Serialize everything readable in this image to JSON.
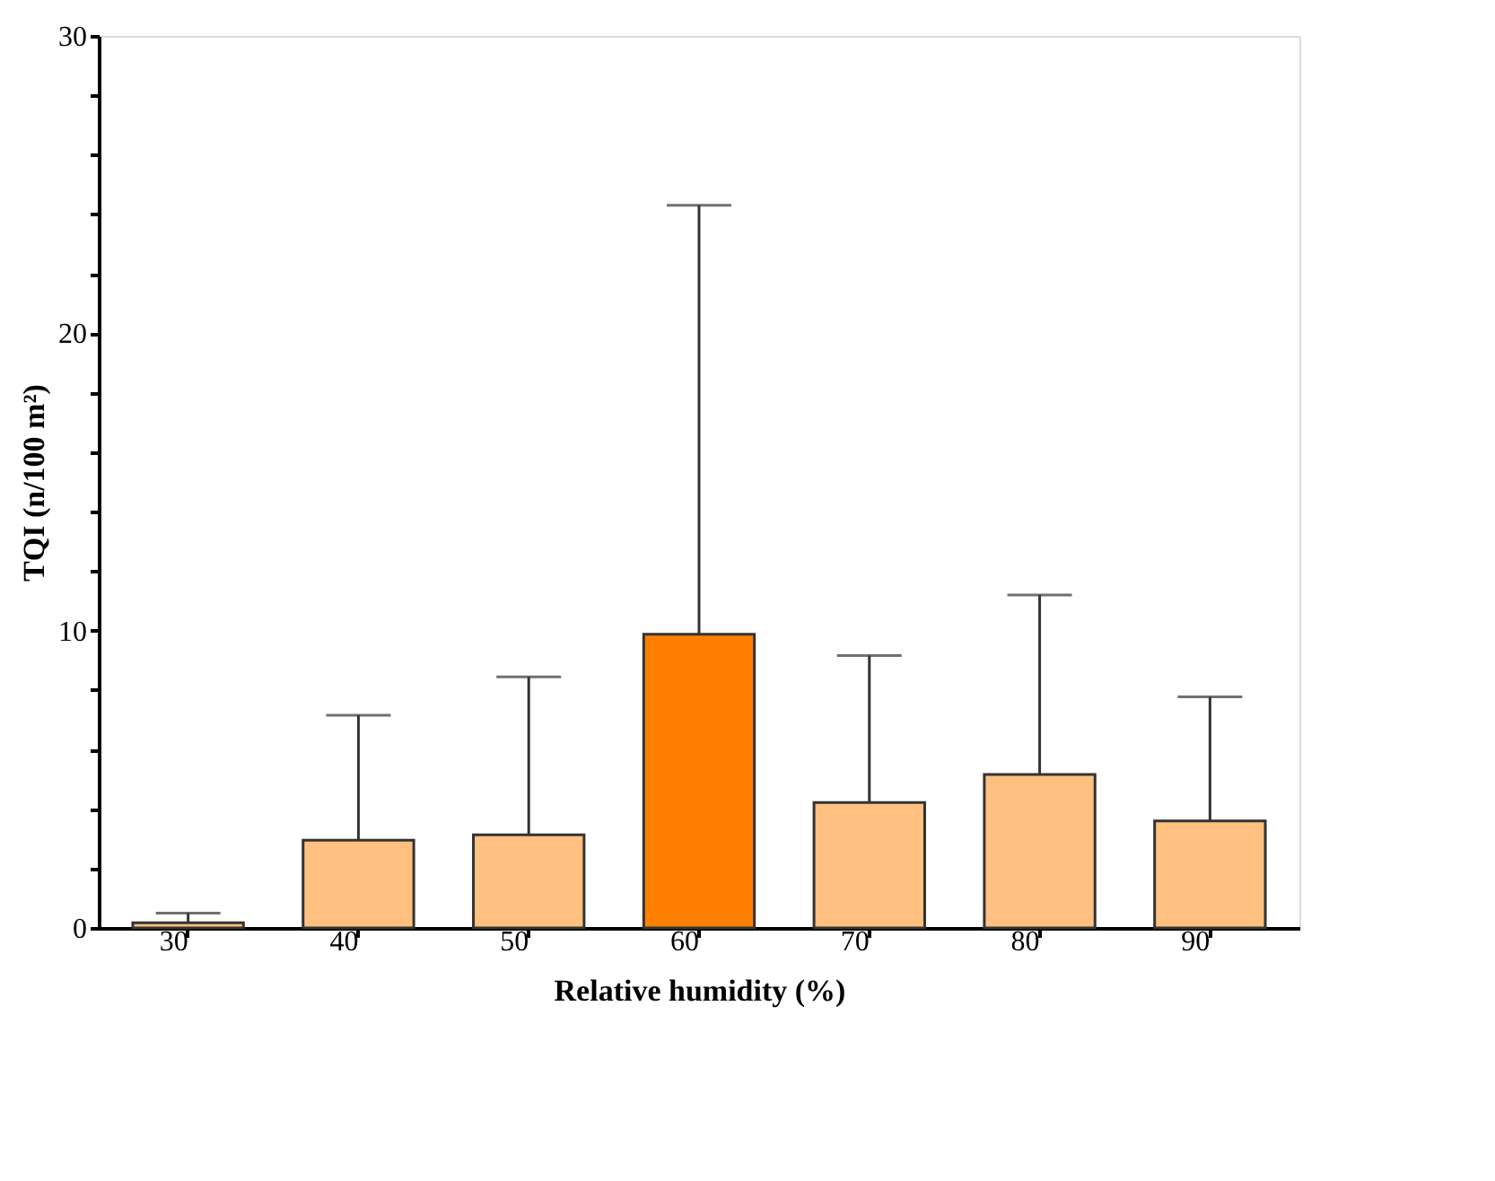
{
  "chart_data": {
    "type": "bar",
    "xlabel": "Relative humidity (%)",
    "ylabel": "TQI (n/100 m²)",
    "categories": [
      "30",
      "40",
      "50",
      "60",
      "70",
      "80",
      "90"
    ],
    "values": [
      0.17,
      2.95,
      3.13,
      9.88,
      4.22,
      5.16,
      3.6
    ],
    "colors": [
      "#ffc080",
      "#ffc080",
      "#ffc080",
      "#ff8000",
      "#ffc080",
      "#ffc080",
      "#ffc080"
    ],
    "errors": [
      [
        0.17,
        0.5
      ],
      [
        2.95,
        7.15
      ],
      [
        3.13,
        8.44
      ],
      [
        9.88,
        24.3
      ],
      [
        4.22,
        9.16
      ],
      [
        5.16,
        11.2
      ],
      [
        3.6,
        7.77
      ]
    ],
    "ylim": [
      0,
      30
    ],
    "yticks": [
      0,
      {
        "value": 2,
        "label": null
      },
      {
        "value": 4,
        "label": null
      },
      {
        "value": 6,
        "label": null
      },
      {
        "value": 8,
        "label": null
      },
      10,
      {
        "value": 12,
        "label": null
      },
      {
        "value": 14,
        "label": null
      },
      {
        "value": 16,
        "label": null
      },
      {
        "value": 18,
        "label": null
      },
      20,
      {
        "value": 22,
        "label": null
      },
      {
        "value": 24,
        "label": null
      },
      {
        "value": 26,
        "label": null
      },
      {
        "value": 28,
        "label": null
      },
      30
    ],
    "grid": false
  }
}
